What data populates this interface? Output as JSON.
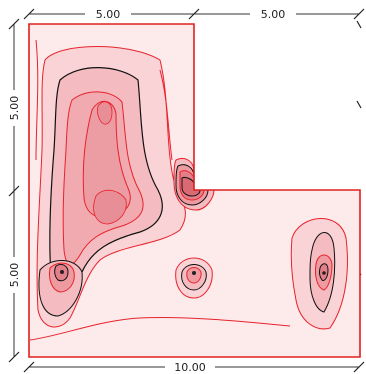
{
  "dimensions": {
    "top_left": "5.00",
    "top_right": "5.00",
    "bottom": "10.00",
    "left_top": "5.00",
    "left_bottom": "5.00"
  },
  "colors": {
    "boundary": "#e0201e",
    "contour_red": "#e8222c",
    "contour_black": "#111111",
    "fill_lightest": "#fde9ea",
    "fill_light": "#f9d3d6",
    "fill_medium": "#f4b8bd",
    "fill_strong": "#ee9aa1"
  }
}
